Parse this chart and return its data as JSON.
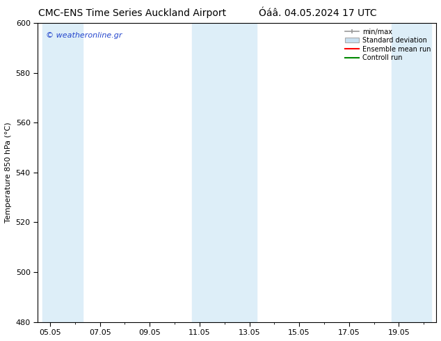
{
  "title_left": "CMC-ENS Time Series Auckland Airport",
  "title_right": "Óáâ. 04.05.2024 17 UTC",
  "ylabel": "Temperature 850 hPa (°C)",
  "watermark": "© weatheronline.gr",
  "ylim": [
    480,
    600
  ],
  "yticks": [
    480,
    500,
    520,
    540,
    560,
    580,
    600
  ],
  "x_labels": [
    "05.05",
    "07.05",
    "09.05",
    "11.05",
    "13.05",
    "15.05",
    "17.05",
    "19.05"
  ],
  "x_positions": [
    0,
    2,
    4,
    6,
    8,
    10,
    12,
    14
  ],
  "shaded_bands": [
    {
      "x_start": -0.3,
      "x_end": 1.3,
      "color": "#ddeef8"
    },
    {
      "x_start": 5.7,
      "x_end": 8.3,
      "color": "#ddeef8"
    },
    {
      "x_start": 13.7,
      "x_end": 15.3,
      "color": "#ddeef8"
    }
  ],
  "legend_items": [
    {
      "label": "min/max",
      "type": "errorbar",
      "color": "#999999"
    },
    {
      "label": "Standard deviation",
      "type": "box",
      "facecolor": "#c8dff0",
      "edgecolor": "#aaaaaa"
    },
    {
      "label": "Ensemble mean run",
      "type": "line",
      "color": "#ff0000"
    },
    {
      "label": "Controll run",
      "type": "line",
      "color": "#008800"
    }
  ],
  "background_color": "#ffffff",
  "plot_bg_color": "#ffffff",
  "border_color": "#000000",
  "title_fontsize": 10,
  "label_fontsize": 8,
  "tick_fontsize": 8,
  "watermark_color": "#2244cc",
  "watermark_fontsize": 8,
  "x_min": -0.5,
  "x_max": 15.5
}
